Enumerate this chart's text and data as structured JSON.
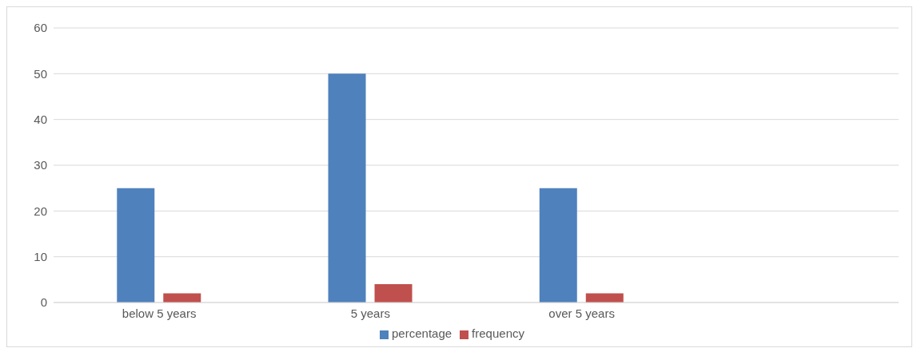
{
  "chart_data": {
    "type": "bar",
    "categories": [
      "below 5 years",
      "5 years",
      "over 5 years",
      null
    ],
    "series": [
      {
        "name": "percentage",
        "color": "#4f81bd",
        "values": [
          25,
          50,
          25,
          null
        ]
      },
      {
        "name": "frequency",
        "color": "#c0504d",
        "values": [
          2,
          4,
          2,
          null
        ]
      }
    ],
    "ylim": [
      0,
      60
    ],
    "yticks": [
      0,
      10,
      20,
      30,
      40,
      50,
      60
    ],
    "grid": "y",
    "legend": "bottom"
  }
}
